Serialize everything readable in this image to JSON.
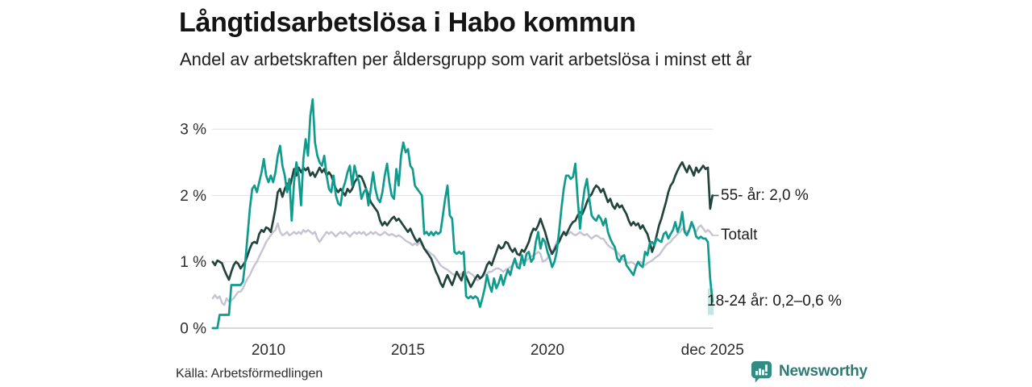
{
  "header": {
    "title": "Långtidsarbetslösa i Habo kommun",
    "subtitle": "Andel av arbetskraften per åldersgrupp som varit arbetslösa i minst ett år"
  },
  "source": {
    "label": "Källa: Arbetsförmedlingen"
  },
  "brand": {
    "name": "Newsworthy",
    "icon": "bar-chart-speech-bubble-icon",
    "bubble_color": "#308c84",
    "text_color": "#2e7a75"
  },
  "chart_data": {
    "type": "line",
    "title": "Långtidsarbetslösa i Habo kommun",
    "subtitle": "Andel av arbetskraften per åldersgrupp som varit arbetslösa i minst ett år",
    "unit": "%",
    "grid": "horizontal",
    "legend_position": "right-end-labels",
    "x_start": 2008.0,
    "x_step_months": 1,
    "xlim": [
      2008,
      2026.1
    ],
    "ylim": [
      0,
      3.5
    ],
    "y_ticks": [
      {
        "value": 0,
        "label": "0 %"
      },
      {
        "value": 1,
        "label": "1 %"
      },
      {
        "value": 2,
        "label": "2 %"
      },
      {
        "value": 3,
        "label": "3 %"
      }
    ],
    "x_ticks": [
      {
        "t": 2010,
        "label": "2010"
      },
      {
        "t": 2015,
        "label": "2015"
      },
      {
        "t": 2020,
        "label": "2020"
      },
      {
        "t": 2025.917,
        "label": "dec 2025"
      }
    ],
    "draw_order": [
      1,
      0,
      2
    ],
    "series": [
      {
        "name": "55- år",
        "color": "#23443d",
        "end_label": "55- år: 2,0 %",
        "end_value": 2.0,
        "values": [
          1.0,
          0.95,
          1.02,
          1.0,
          0.98,
          0.88,
          0.8,
          0.73,
          0.85,
          0.95,
          1.0,
          0.97,
          0.9,
          0.95,
          1.0,
          1.1,
          1.2,
          1.28,
          1.3,
          1.28,
          1.42,
          1.48,
          1.45,
          1.52,
          1.5,
          1.45,
          1.62,
          1.8,
          2.05,
          2.1,
          1.98,
          2.1,
          2.18,
          2.1,
          2.25,
          2.4,
          2.3,
          2.42,
          2.35,
          2.42,
          2.38,
          2.42,
          2.3,
          2.35,
          2.28,
          2.35,
          2.42,
          2.35,
          2.4,
          2.3,
          2.35,
          2.3,
          2.2,
          2.1,
          2.05,
          2.1,
          2.05,
          2.0,
          2.1,
          2.05,
          2.1,
          2.2,
          2.25,
          2.3,
          2.28,
          2.2,
          2.1,
          2.0,
          1.9,
          1.85,
          1.8,
          1.75,
          1.62,
          1.55,
          1.6,
          1.55,
          1.6,
          1.65,
          1.68,
          1.62,
          1.65,
          1.6,
          1.55,
          1.5,
          1.45,
          1.5,
          1.42,
          1.35,
          1.3,
          1.35,
          1.28,
          1.2,
          1.15,
          1.1,
          1.05,
          0.95,
          0.85,
          0.78,
          0.68,
          0.62,
          0.72,
          0.8,
          0.72,
          0.65,
          0.75,
          0.85,
          0.78,
          0.72,
          0.85,
          0.78,
          0.7,
          0.62,
          0.68,
          0.75,
          0.8,
          0.75,
          0.78,
          0.85,
          0.95,
          1.0,
          0.95,
          1.05,
          1.15,
          1.25,
          1.2,
          1.22,
          1.3,
          1.28,
          1.2,
          1.15,
          1.2,
          1.12,
          1.1,
          1.18,
          1.15,
          1.22,
          1.3,
          1.42,
          1.5,
          1.48,
          1.55,
          1.65,
          1.55,
          1.45,
          1.32,
          1.2,
          1.12,
          1.18,
          1.25,
          1.3,
          1.38,
          1.45,
          1.4,
          1.48,
          1.55,
          1.6,
          1.62,
          1.7,
          1.75,
          1.72,
          1.8,
          1.9,
          1.98,
          2.02,
          2.1,
          2.15,
          2.12,
          2.05,
          2.1,
          2.0,
          1.9,
          1.95,
          1.85,
          1.8,
          1.88,
          1.82,
          1.85,
          1.78,
          1.72,
          1.62,
          1.55,
          1.6,
          1.55,
          1.58,
          1.5,
          1.55,
          1.48,
          1.42,
          1.3,
          1.15,
          1.25,
          1.4,
          1.55,
          1.65,
          1.78,
          1.9,
          2.05,
          2.15,
          2.2,
          2.3,
          2.38,
          2.45,
          2.5,
          2.42,
          2.35,
          2.45,
          2.38,
          2.3,
          2.42,
          2.35,
          2.4,
          2.45,
          2.4,
          2.42,
          1.8,
          2.0
        ]
      },
      {
        "name": "Totalt",
        "color": "#c6c3d2",
        "end_label": "Totalt",
        "end_value": 1.4,
        "values": [
          0.45,
          0.5,
          0.45,
          0.48,
          0.38,
          0.35,
          0.45,
          0.4,
          0.42,
          0.45,
          0.5,
          0.55,
          0.55,
          0.6,
          0.68,
          0.75,
          0.8,
          0.88,
          0.95,
          1.0,
          1.08,
          1.15,
          1.22,
          1.3,
          1.35,
          1.4,
          1.45,
          1.48,
          1.58,
          1.45,
          1.4,
          1.42,
          1.45,
          1.4,
          1.42,
          1.45,
          1.42,
          1.45,
          1.42,
          1.48,
          1.45,
          1.48,
          1.45,
          1.42,
          1.45,
          1.35,
          1.3,
          1.35,
          1.4,
          1.45,
          1.42,
          1.45,
          1.42,
          1.38,
          1.42,
          1.45,
          1.42,
          1.45,
          1.42,
          1.38,
          1.42,
          1.45,
          1.42,
          1.45,
          1.42,
          1.45,
          1.4,
          1.42,
          1.45,
          1.42,
          1.45,
          1.42,
          1.4,
          1.42,
          1.45,
          1.42,
          1.4,
          1.42,
          1.4,
          1.38,
          1.4,
          1.38,
          1.35,
          1.32,
          1.3,
          1.28,
          1.25,
          1.28,
          1.25,
          1.3,
          1.25,
          1.2,
          1.18,
          1.15,
          1.12,
          1.1,
          1.05,
          1.0,
          0.95,
          0.92,
          0.9,
          0.88,
          0.85,
          0.82,
          0.8,
          0.82,
          0.8,
          0.82,
          0.85,
          0.82,
          0.85,
          0.82,
          0.8,
          0.75,
          0.72,
          0.75,
          0.78,
          0.8,
          0.82,
          0.85,
          0.85,
          0.88,
          0.9,
          0.9,
          0.88,
          0.85,
          0.88,
          0.9,
          0.92,
          0.95,
          1.0,
          0.98,
          0.95,
          0.98,
          1.0,
          1.02,
          1.05,
          1.08,
          1.1,
          1.12,
          1.15,
          1.12,
          1.0,
          1.02,
          1.05,
          1.1,
          1.15,
          1.22,
          1.3,
          1.35,
          1.4,
          1.42,
          1.45,
          1.42,
          1.45,
          1.42,
          1.4,
          1.42,
          1.45,
          1.42,
          1.4,
          1.42,
          1.38,
          1.35,
          1.38,
          1.4,
          1.38,
          1.35,
          1.35,
          1.3,
          1.25,
          1.22,
          1.2,
          1.18,
          1.15,
          1.1,
          1.05,
          1.02,
          1.0,
          0.98,
          1.0,
          0.98,
          0.95,
          0.98,
          1.0,
          0.98,
          0.95,
          0.98,
          1.0,
          1.02,
          1.05,
          1.08,
          1.1,
          1.15,
          1.2,
          1.25,
          1.28,
          1.3,
          1.35,
          1.38,
          1.42,
          1.45,
          1.5,
          1.48,
          1.45,
          1.48,
          1.55,
          1.5,
          1.45,
          1.52,
          1.55,
          1.5,
          1.45,
          1.48,
          1.45,
          1.4
        ]
      },
      {
        "name": "18-24 år",
        "color": "#0f9b8d",
        "end_label": "18-24 år: 0,2–0,6 %",
        "end_value_range": [
          0.2,
          0.6
        ],
        "uncertainty_band": {
          "t_from": 2025.75,
          "t_to": 2025.96,
          "low": 0.2,
          "high": 0.6,
          "color": "#93d5c9"
        },
        "values": [
          0.0,
          0.0,
          0.0,
          0.2,
          0.2,
          0.2,
          0.2,
          0.2,
          0.65,
          0.65,
          0.65,
          0.65,
          0.65,
          0.7,
          1.0,
          1.4,
          1.8,
          2.1,
          2.15,
          2.05,
          2.2,
          2.35,
          2.55,
          2.3,
          2.2,
          2.3,
          2.2,
          2.35,
          2.6,
          2.75,
          2.45,
          2.3,
          2.05,
          2.25,
          1.62,
          2.2,
          2.5,
          2.3,
          1.85,
          2.55,
          2.85,
          2.6,
          3.2,
          3.45,
          2.8,
          2.6,
          2.5,
          2.45,
          2.6,
          2.3,
          2.1,
          2.05,
          2.3,
          2.0,
          1.88,
          1.85,
          2.1,
          2.2,
          2.35,
          2.45,
          2.15,
          2.45,
          2.3,
          2.2,
          1.95,
          2.05,
          2.1,
          1.85,
          2.1,
          2.35,
          2.1,
          1.95,
          1.9,
          2.05,
          2.3,
          2.48,
          2.2,
          2.0,
          1.95,
          2.4,
          2.15,
          2.6,
          2.8,
          2.65,
          2.7,
          2.45,
          2.4,
          2.15,
          2.1,
          2.05,
          2.0,
          1.42,
          1.45,
          1.4,
          1.45,
          1.4,
          1.45,
          1.42,
          1.45,
          1.7,
          1.95,
          2.15,
          1.7,
          1.65,
          1.15,
          1.12,
          1.15,
          1.12,
          1.15,
          0.48,
          0.45,
          0.48,
          0.45,
          0.48,
          0.45,
          0.32,
          0.45,
          0.6,
          0.8,
          0.65,
          0.55,
          0.75,
          0.6,
          0.68,
          0.8,
          0.65,
          0.78,
          0.88,
          0.8,
          0.95,
          1.05,
          0.92,
          0.9,
          1.1,
          0.95,
          1.12,
          1.15,
          1.0,
          1.05,
          1.3,
          1.45,
          1.2,
          1.35,
          1.3,
          1.15,
          1.05,
          0.92,
          1.0,
          1.15,
          1.45,
          1.8,
          2.1,
          2.3,
          2.3,
          2.25,
          2.28,
          2.48,
          1.95,
          1.5,
          1.85,
          2.1,
          2.25,
          1.95,
          1.7,
          1.65,
          1.62,
          1.7,
          1.65,
          1.55,
          1.65,
          1.45,
          1.35,
          1.28,
          1.22,
          1.05,
          1.0,
          1.08,
          1.1,
          0.95,
          0.9,
          0.85,
          0.8,
          0.92,
          1.0,
          0.95,
          0.92,
          1.15,
          1.1,
          1.28,
          1.3,
          1.25,
          1.35,
          1.32,
          1.3,
          1.42,
          1.45,
          1.35,
          1.42,
          1.48,
          1.6,
          1.45,
          1.55,
          1.75,
          1.45,
          1.4,
          1.48,
          1.6,
          1.52,
          1.38,
          1.35,
          1.38,
          1.35,
          1.35,
          1.3,
          0.75,
          0.4
        ]
      }
    ]
  }
}
